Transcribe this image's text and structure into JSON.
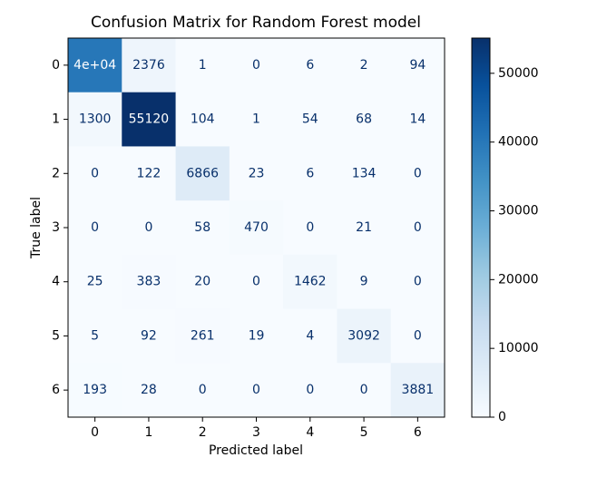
{
  "chart_data": {
    "type": "heatmap",
    "title": "Confusion Matrix for Random Forest model",
    "x_label": "Predicted label",
    "y_label": "True label",
    "x_categories": [
      "0",
      "1",
      "2",
      "3",
      "4",
      "5",
      "6"
    ],
    "y_categories": [
      "0",
      "1",
      "2",
      "3",
      "4",
      "5",
      "6"
    ],
    "values": [
      [
        40000,
        2376,
        1,
        0,
        6,
        2,
        94
      ],
      [
        1300,
        55120,
        104,
        1,
        54,
        68,
        14
      ],
      [
        0,
        122,
        6866,
        23,
        6,
        134,
        0
      ],
      [
        0,
        0,
        58,
        470,
        0,
        21,
        0
      ],
      [
        25,
        383,
        20,
        0,
        1462,
        9,
        0
      ],
      [
        5,
        92,
        261,
        19,
        4,
        3092,
        0
      ],
      [
        193,
        28,
        0,
        0,
        0,
        0,
        3881
      ]
    ],
    "value_labels": [
      [
        "4e+04",
        null,
        null,
        null,
        null,
        null,
        null
      ],
      [
        null,
        null,
        null,
        null,
        null,
        null,
        null
      ],
      [
        null,
        null,
        null,
        null,
        null,
        null,
        null
      ],
      [
        null,
        null,
        null,
        null,
        null,
        null,
        null
      ],
      [
        null,
        null,
        null,
        null,
        null,
        null,
        null
      ],
      [
        null,
        null,
        null,
        null,
        null,
        null,
        null
      ],
      [
        null,
        null,
        null,
        null,
        null,
        null,
        null
      ]
    ],
    "colorbar_lim": [
      0,
      55120
    ],
    "colorbar_ticks": [
      0,
      10000,
      20000,
      30000,
      40000,
      50000
    ],
    "colormap": [
      "#f7fbff",
      "#deebf7",
      "#c6dbef",
      "#9ecae1",
      "#6baed6",
      "#4292c6",
      "#2171b5",
      "#08519c",
      "#08306b"
    ],
    "text_color_light": "#ffffff",
    "text_color_dark": "#08306b"
  }
}
